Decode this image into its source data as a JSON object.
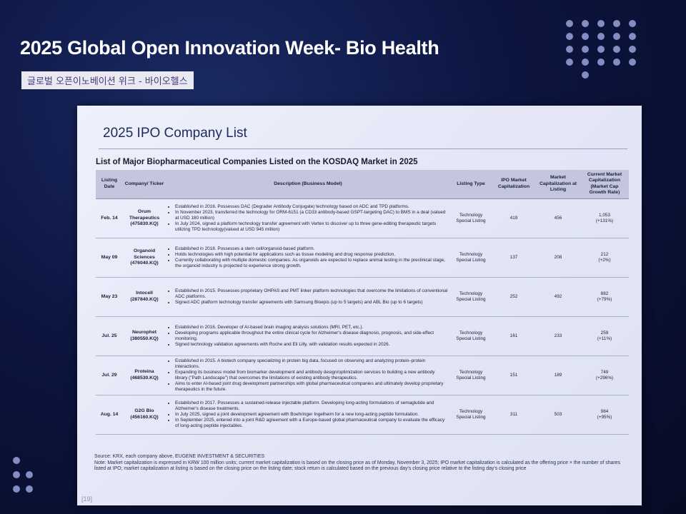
{
  "header": {
    "title": "2025 Global Open Innovation Week- Bio Health",
    "subtitle": "글로벌 오픈이노베이션 위크 - 바이오헬스"
  },
  "slide": {
    "title": "2025 IPO Company List",
    "table_caption": "List of Major Biopharmaceutical Companies Listed on the KOSDAQ Market in 2025",
    "columns": [
      "Listing Date",
      "Company/ Ticker",
      "Description (Business Model)",
      "Listing Type",
      "IPO Market Capitalization",
      "Market Capitalization at Listing",
      "Current Market Capitalization (Market Cap Growth Rate)"
    ],
    "rows": [
      {
        "date": "Feb. 14",
        "company": "Orum Therapeutics",
        "ticker": "(475830.KQ)",
        "desc": [
          "Established in 2016. Possesses DAC (Degrader Antibody Conjugate) technology based on ADC and TPD platforms.",
          "In November 2023, transferred the technology for ORM-6151 (a CD33 antibody-based GSPT-targeting DAC) to BMS in a deal (valued at USD 180 million)",
          "In July 2024, signed a platform technology transfer agreement with Vertex to discover up to three gene-editing therapeutic targets utilizing TPD technology(valued at USD 945 million)"
        ],
        "listing_type": "Technology Special Listing",
        "ipo_cap": "419",
        "listing_cap": "456",
        "current_cap": "1,053",
        "growth": "(+131%)"
      },
      {
        "date": "May 09",
        "company": "Organoid Sciences",
        "ticker": "(476040.KQ)",
        "desc": [
          "Established in 2018. Possesses a stem cell/organoid-based platform.",
          "Holds technologies with high potential for applications such as tissue modeling and drug response prediction.",
          "Currently collaborating with multiple domestic companies. As organoids are expected to replace animal testing in the preclinical stage, the organoid industry is projected to experience strong growth."
        ],
        "listing_type": "Technology Special Listing",
        "ipo_cap": "137",
        "listing_cap": "208",
        "current_cap": "212",
        "growth": "(+2%)"
      },
      {
        "date": "May 23",
        "company": "Intocell",
        "ticker": "(287840.KQ)",
        "desc": [
          "Established in 2015. Possesses proprietary OHPAS and PMT linker platform technologies that overcome the limitations of conventional ADC platforms.",
          "Signed ADC platform technology transfer agreements with Samsung Bioepis (up to 5 targets) and ABL Bio (up to 6 targets)"
        ],
        "listing_type": "Technology Special Listing",
        "ipo_cap": "252",
        "listing_cap": "492",
        "current_cap": "882",
        "growth": "(+79%)"
      },
      {
        "date": "Jul. 25",
        "company": "Neurophet",
        "ticker": "(380550.KQ)",
        "desc": [
          "Established in 2016. Developer of AI-based brain imaging analysis solutions (MRI, PET, etc.).",
          "Developing programs applicable throughout the entire clinical cycle for Alzheimer's disease diagnosis, prognosis, and side-effect monitoring.",
          "Signed technology validation agreements with Roche and Eli Lilly, with validation results expected in 2026."
        ],
        "listing_type": "Technology Special Listing",
        "ipo_cap": "161",
        "listing_cap": "233",
        "current_cap": "259",
        "growth": "(+11%)"
      },
      {
        "date": "Jul. 29",
        "company": "Proteina",
        "ticker": "(468530.KQ)",
        "desc": [
          "Established in 2015. A biotech company specializing in protein big data, focused on observing and analyzing protein–protein interactions.",
          "Expanding its business model from biomarker development and antibody design/optimization services to building a new antibody library (\"Path Landscape\") that overcomes the limitations of existing antibody therapeutics.",
          "Aims to enter AI-based joint drug development partnerships with global pharmaceutical companies and ultimately develop proprietary therapeutics in the future."
        ],
        "listing_type": "Technology Special Listing",
        "ipo_cap": "151",
        "listing_cap": "189",
        "current_cap": "749",
        "growth": "(+296%)"
      },
      {
        "date": "Aug. 14",
        "company": "G2G Bio",
        "ticker": "(456160.KQ)",
        "desc": [
          "Established in 2017. Possesses a sustained-release injectable platform. Developing long-acting formulations of semaglutide and Alzheimer's disease treatments.",
          "In July 2025, signed a joint development agreement with Boehringer Ingelheim for a new long-acting peptide formulation.",
          "In September 2025, entered into a joint R&D agreement with a Europe-based global pharmaceutical company to evaluate the efficacy of long-acting peptide injectables."
        ],
        "listing_type": "Technology Special Listing",
        "ipo_cap": "311",
        "listing_cap": "503",
        "current_cap": "984",
        "growth": "(+95%)"
      }
    ],
    "source": "Source: KRX, each company above, EUGENE INVESTMENT & SECURITIES",
    "note": "Note: Market capitalization is expressed in KRW 100 million units; current market capitalization is based on the closing price as of Monday, November 3, 2025; IPO market capitalization is calculated as the offering price × the number of shares listed at IPO; market capitalization at listing is based on the closing price on the listing date; stock return is calculated based on the previous day's closing price relative to the listing day's closing price",
    "page_number": "[19]"
  }
}
